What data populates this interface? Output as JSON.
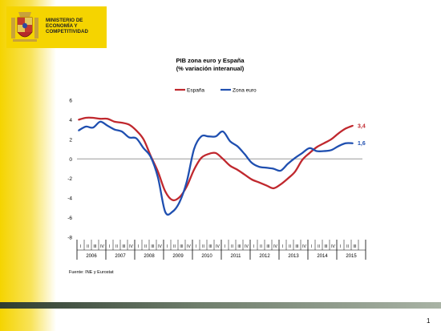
{
  "header": {
    "ministry_lines": [
      "MINISTERIO DE",
      "ECONOMÍA Y",
      "COMPETITIVIDAD"
    ]
  },
  "page_number": "1",
  "chart_data": {
    "type": "line",
    "title": "PIB zona euro y España",
    "subtitle": "(% variación interanual)",
    "source": "Fuente: INE y Eurostat",
    "ylim": [
      -8,
      6
    ],
    "yticks": [
      -8,
      -6,
      -4,
      -2,
      0,
      2,
      4,
      6
    ],
    "grid": false,
    "legend_position": "top-center",
    "quarter_labels": [
      "I",
      "II",
      "III",
      "IV"
    ],
    "years": [
      "2006",
      "2007",
      "2008",
      "2009",
      "2010",
      "2011",
      "2012",
      "2013",
      "2014",
      "2015"
    ],
    "x": [
      "2006-Q1",
      "2006-Q2",
      "2006-Q3",
      "2006-Q4",
      "2007-Q1",
      "2007-Q2",
      "2007-Q3",
      "2007-Q4",
      "2008-Q1",
      "2008-Q2",
      "2008-Q3",
      "2008-Q4",
      "2009-Q1",
      "2009-Q2",
      "2009-Q3",
      "2009-Q4",
      "2010-Q1",
      "2010-Q2",
      "2010-Q3",
      "2010-Q4",
      "2011-Q1",
      "2011-Q2",
      "2011-Q3",
      "2011-Q4",
      "2012-Q1",
      "2012-Q2",
      "2012-Q3",
      "2012-Q4",
      "2013-Q1",
      "2013-Q2",
      "2013-Q3",
      "2013-Q4",
      "2014-Q1",
      "2014-Q2",
      "2014-Q3",
      "2014-Q4",
      "2015-Q1",
      "2015-Q2",
      "2015-Q3"
    ],
    "series": [
      {
        "name": "España",
        "color": "#c0282e",
        "end_label": "3,4",
        "values": [
          4.0,
          4.2,
          4.2,
          4.1,
          4.1,
          3.8,
          3.7,
          3.5,
          2.9,
          2.0,
          0.3,
          -1.3,
          -3.3,
          -4.2,
          -3.9,
          -2.8,
          -1.1,
          0.1,
          0.5,
          0.6,
          0.0,
          -0.7,
          -1.1,
          -1.6,
          -2.1,
          -2.4,
          -2.7,
          -3.0,
          -2.6,
          -2.0,
          -1.3,
          -0.1,
          0.6,
          1.2,
          1.6,
          2.0,
          2.6,
          3.1,
          3.4
        ]
      },
      {
        "name": "Zona euro",
        "color": "#1f4fb0",
        "end_label": "1,6",
        "values": [
          2.9,
          3.3,
          3.2,
          3.8,
          3.4,
          3.0,
          2.8,
          2.2,
          2.1,
          1.1,
          0.2,
          -1.9,
          -5.4,
          -5.4,
          -4.4,
          -2.3,
          1.0,
          2.3,
          2.3,
          2.3,
          2.8,
          1.8,
          1.3,
          0.5,
          -0.4,
          -0.8,
          -0.9,
          -1.0,
          -1.2,
          -0.5,
          0.1,
          0.6,
          1.1,
          0.8,
          0.8,
          0.9,
          1.3,
          1.6,
          1.6
        ]
      }
    ]
  }
}
